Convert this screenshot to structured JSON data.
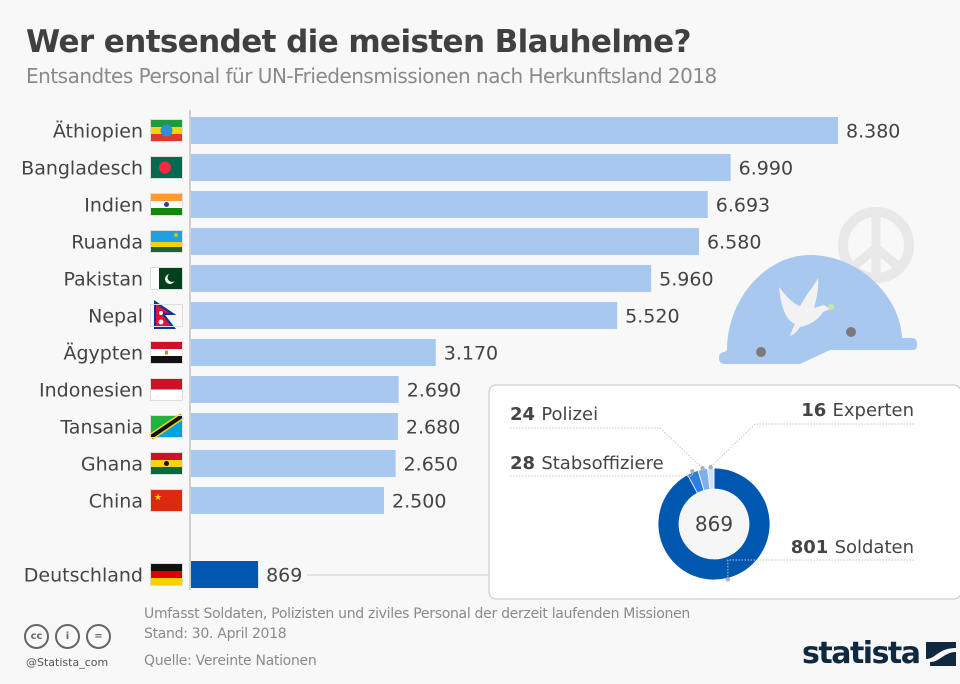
{
  "header": {
    "title": "Wer entsendet die meisten Blauhelme?",
    "subtitle": "Entsandtes Personal für UN-Friedensmissionen nach Herkunftsland 2018"
  },
  "chart_data": [
    {
      "type": "bar",
      "orientation": "horizontal",
      "title": "Wer entsendet die meisten Blauhelme?",
      "subtitle": "Entsandtes Personal für UN-Friedensmissionen nach Herkunftsland 2018",
      "xlabel": "",
      "ylabel": "",
      "xlim": [
        0,
        8380
      ],
      "grid": false,
      "categories": [
        "Äthiopien",
        "Bangladesch",
        "Indien",
        "Ruanda",
        "Pakistan",
        "Nepal",
        "Ägypten",
        "Indonesien",
        "Tansania",
        "Ghana",
        "China",
        "Deutschland"
      ],
      "values": [
        8380,
        6990,
        6693,
        6580,
        5960,
        5520,
        3170,
        2690,
        2680,
        2650,
        2500,
        869
      ],
      "value_labels": [
        "8.380",
        "6.990",
        "6.693",
        "6.580",
        "5.960",
        "5.520",
        "3.170",
        "2.690",
        "2.680",
        "2.650",
        "2.500",
        "869"
      ],
      "flags": [
        "flag-ethiopia",
        "flag-bangladesh",
        "flag-india",
        "flag-rwanda",
        "flag-pakistan",
        "flag-nepal",
        "flag-egypt",
        "flag-indonesia",
        "flag-tanzania",
        "flag-ghana",
        "flag-china",
        "flag-germany"
      ],
      "highlight": "Deutschland",
      "colors": {
        "default": "#a9c8f0",
        "highlight": "#0057b0"
      }
    },
    {
      "type": "pie",
      "variant": "donut",
      "title": "Deutschland",
      "center_label": "869",
      "total": 869,
      "slices": [
        {
          "label": "Soldaten",
          "value": 801,
          "value_label": "801",
          "color": "#0057b0"
        },
        {
          "label": "Stabsoffiziere",
          "value": 28,
          "value_label": "28",
          "color": "#2f7de0"
        },
        {
          "label": "Polizei",
          "value": 24,
          "value_label": "24",
          "color": "#7fb0ec"
        },
        {
          "label": "Experten",
          "value": 16,
          "value_label": "16",
          "color": "#cfe1f8"
        }
      ]
    }
  ],
  "illustration": {
    "helmet_icon": "blue-helmet-with-dove",
    "peace_icon": "peace-symbol"
  },
  "footer": {
    "notes": [
      "Umfasst Soldaten, Polizisten und ziviles Personal der derzeit laufenden Missionen",
      "Stand: 30. April 2018",
      "Quelle: Vereinte Nationen"
    ],
    "handle": "@Statista_com",
    "cc_icons": [
      "cc",
      "i",
      "="
    ],
    "logo": "statista"
  }
}
